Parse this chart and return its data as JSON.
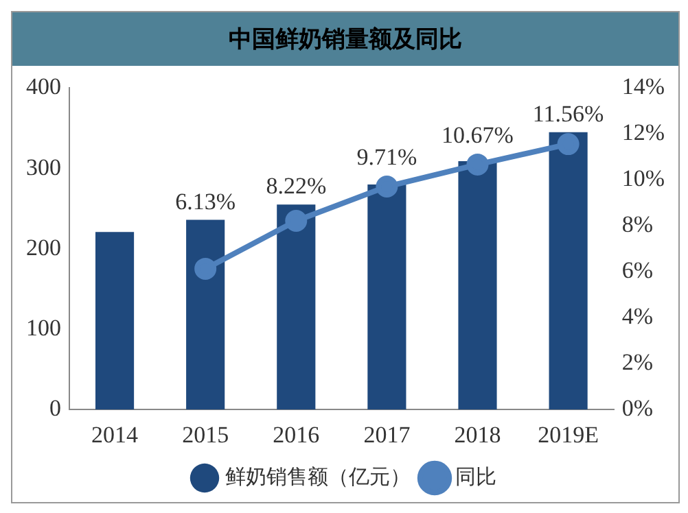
{
  "chart_data": {
    "type": "bar",
    "title": "中国鲜奶销量额及同比",
    "categories": [
      "2014",
      "2015",
      "2016",
      "2017",
      "2018",
      "2019E"
    ],
    "series": [
      {
        "name": "鲜奶销售额（亿元）",
        "color": "#1f497d",
        "values": [
          221,
          236,
          255,
          280,
          309,
          345
        ]
      },
      {
        "name": "同比",
        "type": "line",
        "axis": "y2",
        "color": "#4f81bd",
        "marker": "circle",
        "values": [
          null,
          6.13,
          8.22,
          9.71,
          10.67,
          11.56
        ],
        "value_labels": [
          null,
          "6.13%",
          "8.22%",
          "9.71%",
          "10.67%",
          "11.56%"
        ]
      }
    ],
    "ylim": [
      0,
      400
    ],
    "yticks": [
      0,
      100,
      200,
      300,
      400
    ],
    "y2lim": [
      0,
      14
    ],
    "y2ticks": [
      {
        "value": 0,
        "label": "0%"
      },
      {
        "value": 2,
        "label": "2%"
      },
      {
        "value": 4,
        "label": "4%"
      },
      {
        "value": 6,
        "label": "6%"
      },
      {
        "value": 8,
        "label": "8%"
      },
      {
        "value": 10,
        "label": "10%"
      },
      {
        "value": 12,
        "label": "12%"
      },
      {
        "value": 14,
        "label": "14%"
      }
    ],
    "legend": "bottom",
    "grid": false
  }
}
